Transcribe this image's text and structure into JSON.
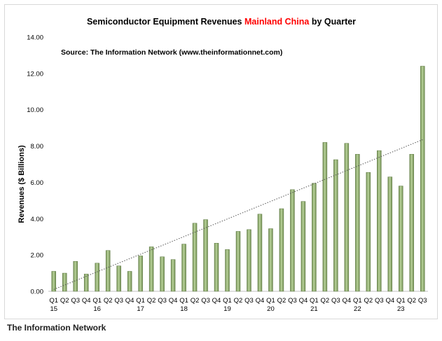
{
  "chart_data": {
    "type": "bar",
    "title_parts": {
      "before": "Semiconductor Equipment Revenues ",
      "highlight": "Mainland China",
      "after": " by Quarter"
    },
    "source": "Source: The Information Network (www.theinformationnet.com)",
    "ylabel": "Revenues ($ Billions)",
    "xlabel": "",
    "ylim": [
      0,
      14
    ],
    "yticks": [
      "0.00",
      "2.00",
      "4.00",
      "6.00",
      "8.00",
      "10.00",
      "12.00",
      "14.00"
    ],
    "quarters": [
      "Q1",
      "Q2",
      "Q3",
      "Q4",
      "Q1",
      "Q2",
      "Q3",
      "Q4",
      "Q1",
      "Q2",
      "Q3",
      "Q4",
      "Q1",
      "Q2",
      "Q3",
      "Q4",
      "Q1",
      "Q2",
      "Q3",
      "Q4",
      "Q1",
      "Q2",
      "Q3",
      "Q4",
      "Q1",
      "Q2",
      "Q3",
      "Q4",
      "Q1",
      "Q2",
      "Q3",
      "Q4",
      "Q1",
      "Q2",
      "Q3"
    ],
    "years": [
      {
        "label": "15",
        "index": 0
      },
      {
        "label": "16",
        "index": 4
      },
      {
        "label": "17",
        "index": 8
      },
      {
        "label": "18",
        "index": 12
      },
      {
        "label": "19",
        "index": 16
      },
      {
        "label": "20",
        "index": 20
      },
      {
        "label": "21",
        "index": 24
      },
      {
        "label": "22",
        "index": 28
      },
      {
        "label": "23",
        "index": 32
      }
    ],
    "values": [
      1.1,
      1.0,
      1.65,
      0.95,
      1.55,
      2.25,
      1.4,
      1.1,
      1.95,
      2.45,
      1.9,
      1.75,
      2.6,
      3.75,
      3.95,
      2.65,
      2.3,
      3.3,
      3.4,
      4.25,
      3.45,
      4.55,
      5.6,
      4.95,
      5.95,
      8.2,
      7.25,
      8.15,
      7.55,
      6.55,
      7.75,
      6.3,
      5.8,
      7.55,
      12.4
    ],
    "trendline": {
      "start": 0.1,
      "end": 8.35,
      "style": "dotted"
    },
    "grid": false,
    "legend": "none",
    "colors": {
      "bar": "#9cb97a",
      "bar_dark": "#5f7a44",
      "title_highlight": "#ff0000",
      "text": "#000000",
      "axis": "#bfbfbf"
    }
  },
  "caption": "The Information Network"
}
